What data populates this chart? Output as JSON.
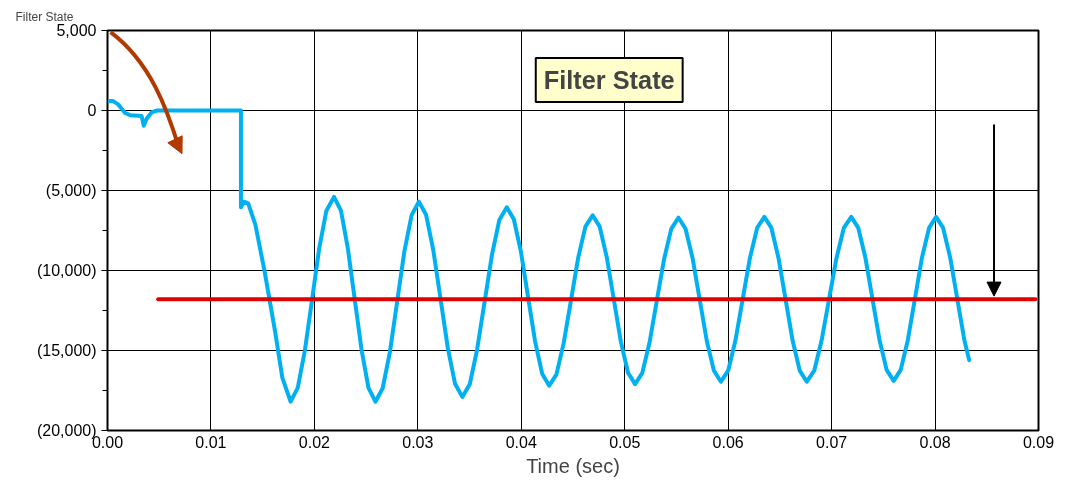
{
  "chart_data": {
    "type": "line",
    "title": "Filter State",
    "xlabel": "Time (sec)",
    "ylabel": "Filter State",
    "x": [
      0,
      0.0005,
      0.001,
      0.0017,
      0.0022,
      0.0033,
      0.0035,
      0.0038,
      0.0043,
      0.0048,
      0.0129,
      0.0129,
      0.0132,
      0.0136,
      0.0143,
      0.0152,
      0.0162,
      0.0169,
      0.0177,
      0.01839,
      0.01908,
      0.01978,
      0.02047,
      0.02116,
      0.0219,
      0.02257,
      0.02323,
      0.0239,
      0.02457,
      0.02523,
      0.0259,
      0.0266,
      0.0273,
      0.028,
      0.0287,
      0.0294,
      0.0301,
      0.0308,
      0.0315,
      0.0322,
      0.0329,
      0.0336,
      0.0343,
      0.03502,
      0.03573,
      0.03645,
      0.03717,
      0.03788,
      0.0386,
      0.03928,
      0.03997,
      0.04065,
      0.04133,
      0.04202,
      0.0427,
      0.0434,
      0.0441,
      0.0448,
      0.0455,
      0.0462,
      0.0469,
      0.04758,
      0.04827,
      0.04895,
      0.04963,
      0.05032,
      0.051,
      0.0517,
      0.0524,
      0.0531,
      0.0538,
      0.0545,
      0.0552,
      0.05588,
      0.05657,
      0.05725,
      0.05793,
      0.05862,
      0.0593,
      0.06,
      0.0607,
      0.0614,
      0.0621,
      0.0628,
      0.0635,
      0.06418,
      0.06487,
      0.06555,
      0.06623,
      0.06692,
      0.0676,
      0.06832,
      0.06903,
      0.06975,
      0.07047,
      0.07118,
      0.0719,
      0.07258,
      0.07327,
      0.07395,
      0.07463,
      0.07532,
      0.076,
      0.07668,
      0.07737,
      0.07805,
      0.07873,
      0.07942,
      0.0801,
      0.08078,
      0.08147,
      0.08215,
      0.08283,
      0.0833
    ],
    "series": [
      {
        "color": "#00b0f0",
        "values": [
          600,
          600,
          400,
          -150,
          -300,
          -350,
          -950,
          -500,
          -100,
          0,
          0,
          -6050,
          -5700,
          -5800,
          -7150,
          -10100,
          -13800,
          -16700,
          -18200,
          -17340,
          -15000,
          -11800,
          -8600,
          -6260,
          -5400,
          -6260,
          -8600,
          -11800,
          -15000,
          -17340,
          -18200,
          -17360,
          -15100,
          -11950,
          -8800,
          -6540,
          -5700,
          -6520,
          -8750,
          -11800,
          -14850,
          -17080,
          -17900,
          -17110,
          -14940,
          -11980,
          -9010,
          -6840,
          -6050,
          -6800,
          -8840,
          -11630,
          -14410,
          -16450,
          -17200,
          -16490,
          -14540,
          -11880,
          -9210,
          -7260,
          -6550,
          -7260,
          -9190,
          -11830,
          -14460,
          -16390,
          -17100,
          -16400,
          -14500,
          -11900,
          -9300,
          -7400,
          -6700,
          -7390,
          -9260,
          -11830,
          -14390,
          -16260,
          -16950,
          -16260,
          -14380,
          -11800,
          -9230,
          -7340,
          -6650,
          -7340,
          -9230,
          -11800,
          -14380,
          -16260,
          -16950,
          -16260,
          -14380,
          -11800,
          -9230,
          -7340,
          -6650,
          -7340,
          -9210,
          -11780,
          -14340,
          -16210,
          -16900,
          -16210,
          -14340,
          -11780,
          -9210,
          -7340,
          -6650,
          -7340,
          -9210,
          -11780,
          -14340,
          -15600
        ]
      },
      {
        "type": "line",
        "color": "#e00000",
        "x": [
          0.0049,
          0.0897
        ],
        "values": [
          -11800,
          -11800
        ]
      }
    ],
    "xlim": [
      0,
      0.09
    ],
    "ylim": [
      -20000,
      5000
    ],
    "xticks": [
      {
        "value": 0,
        "label": "0.00"
      },
      0.01,
      0.02,
      0.03,
      0.04,
      0.05,
      0.06,
      0.07,
      0.08,
      0.09
    ],
    "yticks": [
      {
        "value": -20000,
        "label": "(20,000)"
      },
      {
        "value": -17500,
        "label": null
      },
      {
        "value": -15000,
        "label": "(15,000)"
      },
      {
        "value": -12500,
        "label": null
      },
      {
        "value": -10000,
        "label": "(10,000)"
      },
      {
        "value": -7500,
        "label": null
      },
      {
        "value": -5000,
        "label": "(5,000)"
      },
      {
        "value": -2500,
        "label": null
      },
      0,
      {
        "value": 2500,
        "label": null
      },
      {
        "value": 5000,
        "label": "5,000"
      }
    ],
    "grid": true,
    "marker": "none",
    "line_style": "solid"
  }
}
